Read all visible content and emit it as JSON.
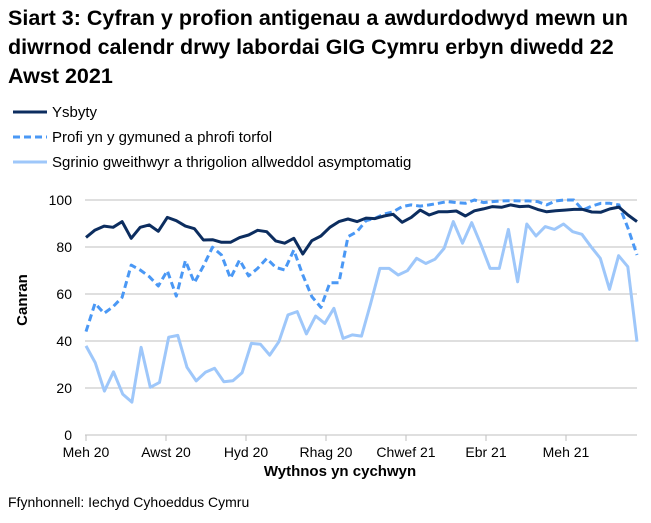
{
  "chart_data": {
    "type": "line",
    "title": "Siart 3: Cyfran y profion antigenau a awdurdodwyd mewn un diwrnod calendr drwy labordai GIG Cymru erbyn diwedd 22 Awst 2021",
    "xlabel": "Wythnos yn cychwyn",
    "ylabel": "Canran",
    "ylim": [
      0,
      100
    ],
    "y_ticks": [
      0,
      20,
      40,
      60,
      80,
      100
    ],
    "x_tick_labels": [
      "Meh 20",
      "Awst 20",
      "Hyd 20",
      "Rhag 20",
      "Chwef 21",
      "Ebr 21",
      "Meh 21"
    ],
    "grid": "horizontal",
    "legend_position": "top-left",
    "series": [
      {
        "name": "Ysbyty",
        "color": "#0c2d5f",
        "style": "solid",
        "values": [
          84.1,
          87.2,
          88.9,
          88.4,
          90.8,
          83.7,
          88.4,
          89.4,
          86.7,
          92.6,
          91.2,
          88.9,
          87.8,
          83.0,
          83.1,
          82.0,
          82.0,
          84.0,
          85.1,
          87.1,
          86.5,
          82.6,
          81.6,
          83.7,
          77.0,
          82.7,
          84.7,
          88.4,
          90.8,
          91.9,
          90.8,
          92.3,
          92.1,
          93.2,
          93.9,
          90.5,
          92.6,
          95.7,
          93.6,
          95.0,
          95.0,
          95.3,
          93.2,
          95.4,
          96.2,
          97.2,
          96.9,
          97.9,
          97.2,
          97.4,
          96.0,
          95.0,
          95.4,
          95.7,
          96.0,
          96.0,
          94.9,
          94.8,
          96.2,
          97.0,
          93.6,
          90.8
        ]
      },
      {
        "name": "Profi yn y gymuned a phrofi torfol",
        "color": "#4a98f5",
        "style": "dashed",
        "values": [
          44.0,
          56.0,
          51.8,
          54.6,
          58.6,
          72.3,
          70.2,
          67.4,
          63.4,
          69.9,
          59.1,
          74.2,
          64.8,
          71.9,
          79.9,
          76.6,
          66.7,
          74.5,
          67.7,
          70.9,
          75.1,
          71.3,
          70.2,
          78.7,
          68.1,
          58.9,
          54.3,
          64.8,
          64.8,
          84.4,
          86.5,
          91.2,
          92.2,
          94.0,
          95.0,
          97.2,
          97.9,
          97.4,
          97.9,
          98.6,
          99.3,
          98.9,
          98.6,
          100,
          98.9,
          99.3,
          99.6,
          99.7,
          99.6,
          99.6,
          99.3,
          97.9,
          99.6,
          100,
          100,
          95.7,
          97.4,
          98.6,
          98.6,
          97.9,
          88.0,
          76.6
        ]
      },
      {
        "name": "Sgrinio gweithwyr a thrigolion allweddol asymptomatig",
        "color": "#9ec7fa",
        "style": "solid",
        "values": [
          37.9,
          30.8,
          18.7,
          26.9,
          17.4,
          14.0,
          37.3,
          20.3,
          22.4,
          41.6,
          42.4,
          28.8,
          23.0,
          26.7,
          28.4,
          22.7,
          23.1,
          26.5,
          39.0,
          38.6,
          34.0,
          39.7,
          51.1,
          52.5,
          43.0,
          50.6,
          47.5,
          53.9,
          41.1,
          42.6,
          42.1,
          56.0,
          70.9,
          70.9,
          68.1,
          69.9,
          75.2,
          73.0,
          74.8,
          79.4,
          90.8,
          81.6,
          90.4,
          81.0,
          70.9,
          70.9,
          87.5,
          65.2,
          89.8,
          84.7,
          88.7,
          87.5,
          89.8,
          86.5,
          85.4,
          80.1,
          75.2,
          62.0,
          76.3,
          71.6,
          39.7
        ]
      }
    ]
  },
  "source": "Ffynhonnell: Iechyd Cyhoeddus Cymru"
}
